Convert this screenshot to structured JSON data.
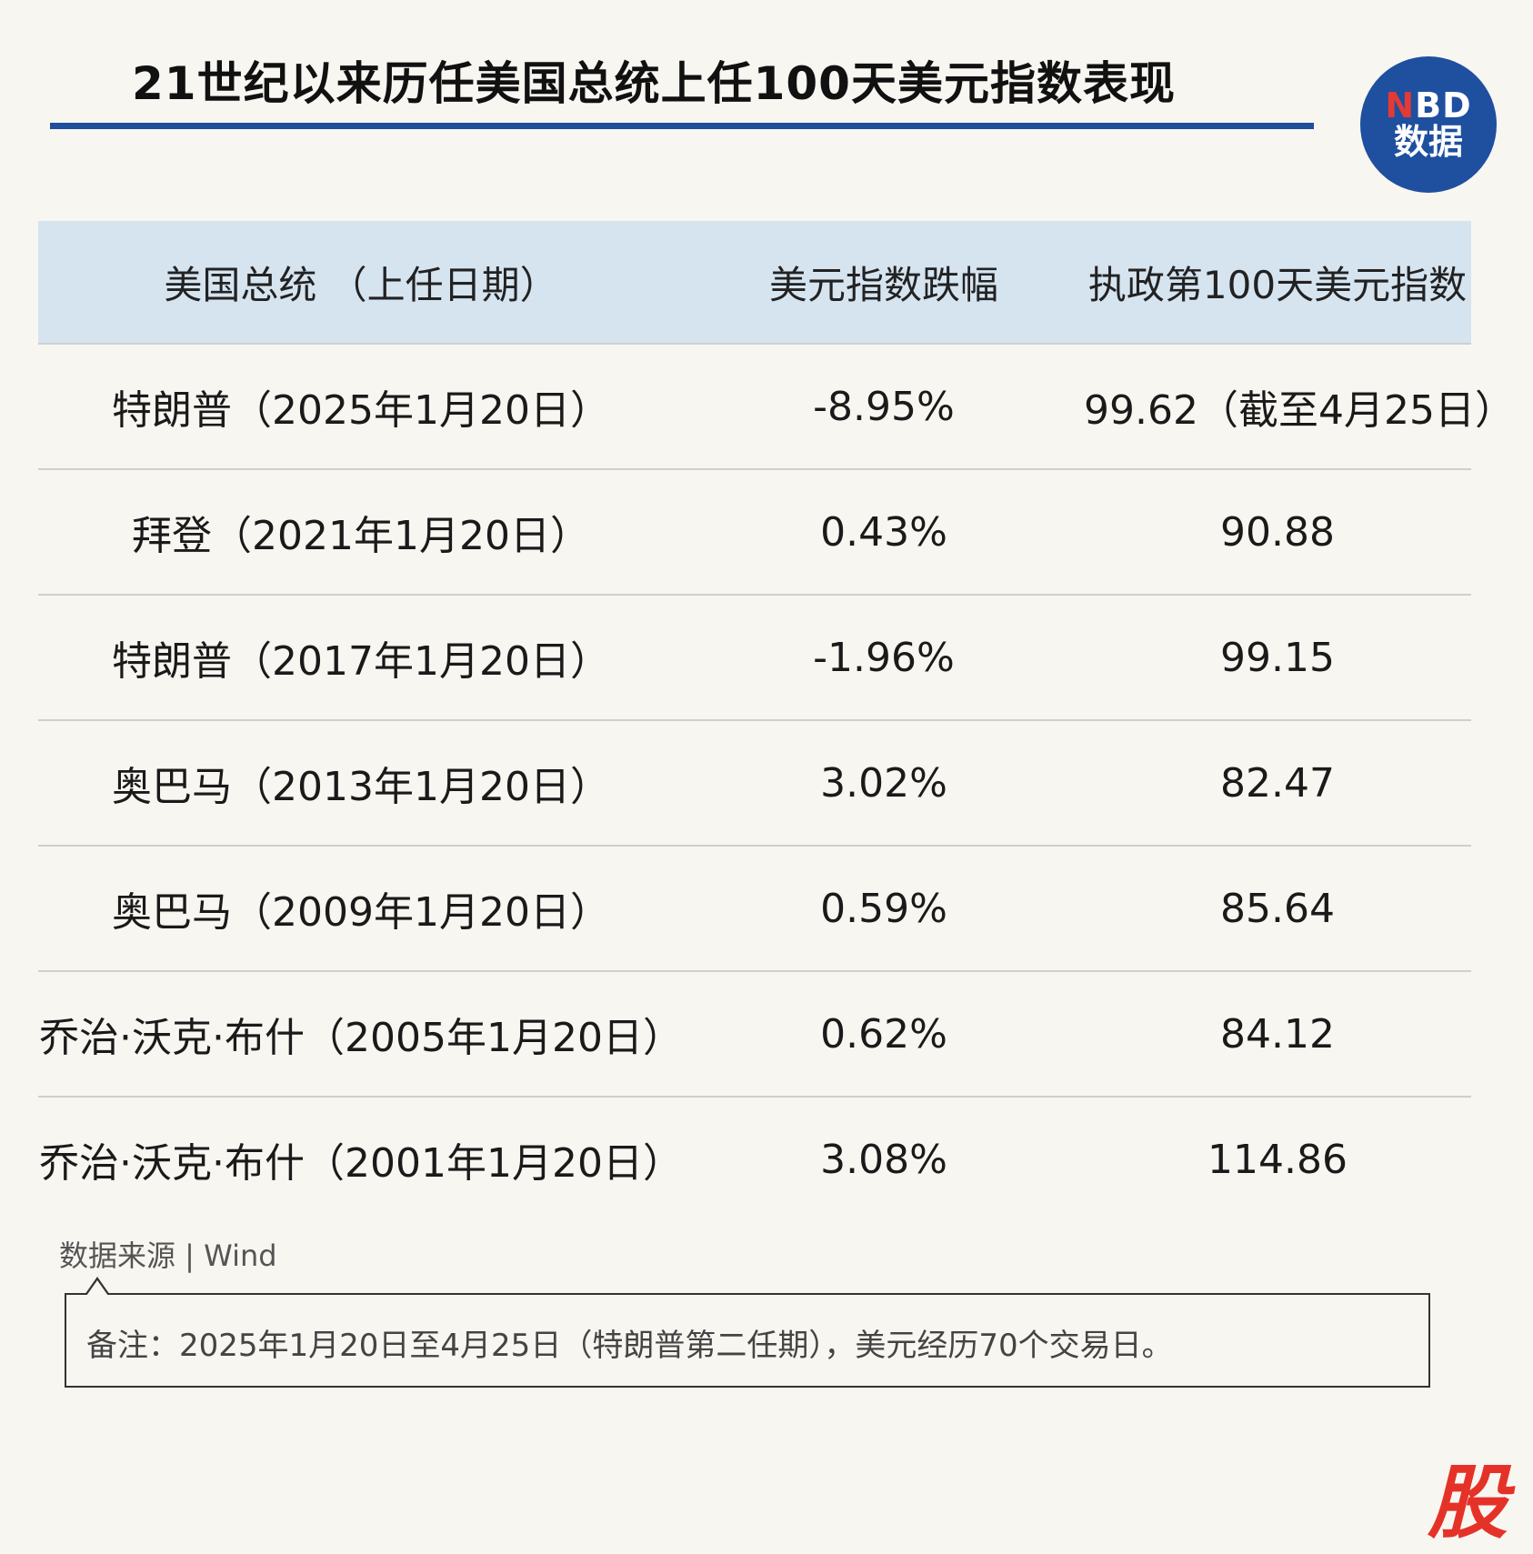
{
  "title": "21世纪以来历任美国总统上任100天美元指数表现",
  "logo": {
    "line1_n": "N",
    "line1_rest": "BD",
    "line2": "数据"
  },
  "chart_data": {
    "type": "table",
    "columns": [
      "美国总统 （上任日期）",
      "美元指数跌幅",
      "执政第100天美元指数"
    ],
    "rows": [
      [
        "特朗普（2025年1月20日）",
        "-8.95%",
        "99.62（截至4月25日）"
      ],
      [
        "拜登（2021年1月20日）",
        "0.43%",
        "90.88"
      ],
      [
        "特朗普（2017年1月20日）",
        "-1.96%",
        "99.15"
      ],
      [
        "奥巴马（2013年1月20日）",
        "3.02%",
        "82.47"
      ],
      [
        "奥巴马（2009年1月20日）",
        "0.59%",
        "85.64"
      ],
      [
        "乔治·沃克·布什（2005年1月20日）",
        "0.62%",
        "84.12"
      ],
      [
        "乔治·沃克·布什（2001年1月20日）",
        "3.08%",
        "114.86"
      ]
    ]
  },
  "source": "数据来源 | Wind",
  "note": "备注：2025年1月20日至4月25日（特朗普第二任期），美元经历70个交易日。",
  "corner_mark": "股",
  "colors": {
    "accent": "#1e4e9c",
    "header_bg": "#d6e4f0",
    "background": "#f8f6f1",
    "mark": "#e53228"
  }
}
